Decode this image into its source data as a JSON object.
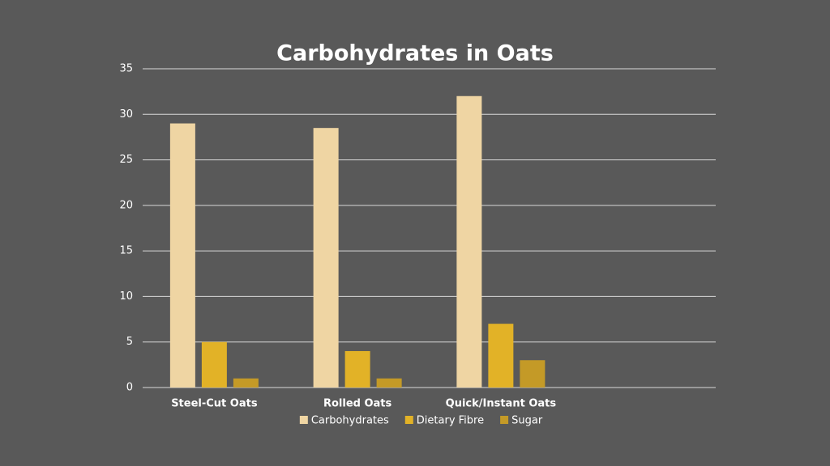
{
  "chart_data": {
    "type": "bar",
    "title": "Carbohydrates in Oats",
    "categories": [
      "Steel-Cut Oats",
      "Rolled Oats",
      "Quick/Instant Oats",
      null
    ],
    "series": [
      {
        "name": "Carbohydrates",
        "color": "#efd5a3",
        "values": [
          29,
          28.5,
          32,
          null
        ]
      },
      {
        "name": "Dietary Fibre",
        "color": "#e2b227",
        "values": [
          5,
          4,
          7,
          null
        ]
      },
      {
        "name": "Sugar",
        "color": "#c49a27",
        "values": [
          1,
          1,
          3,
          null
        ]
      }
    ],
    "ylim": [
      0,
      35
    ],
    "yticks": [
      0,
      5,
      10,
      15,
      20,
      25,
      30,
      35
    ],
    "grid": true,
    "legend": "bottom"
  }
}
